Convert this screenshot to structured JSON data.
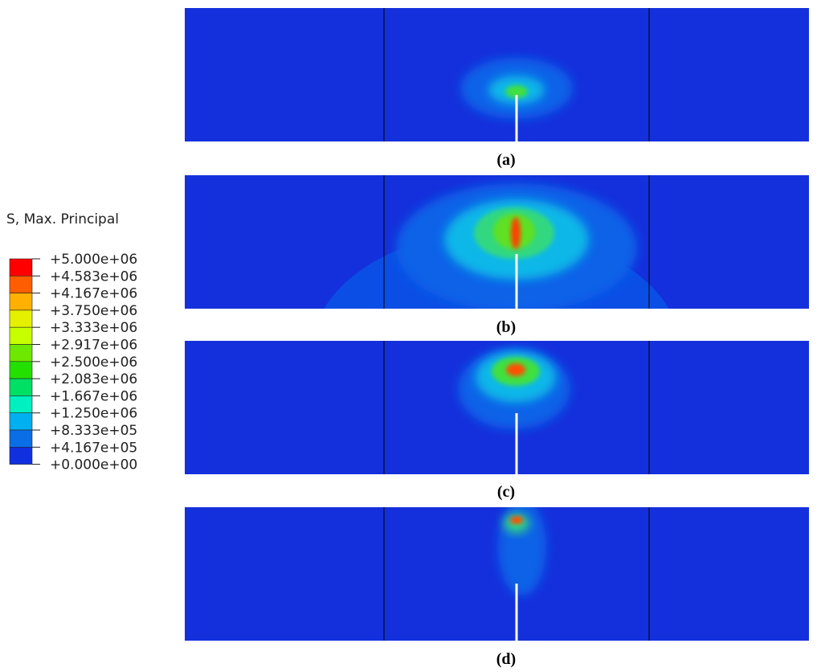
{
  "legend": {
    "title": "S, Max. Principal",
    "entries": [
      {
        "label": "+5.000e+06",
        "color": "#ff0000"
      },
      {
        "label": "+4.583e+06",
        "color": "#ff5e00"
      },
      {
        "label": "+4.167e+06",
        "color": "#ffb000"
      },
      {
        "label": "+3.750e+06",
        "color": "#e4f000"
      },
      {
        "label": "+3.333e+06",
        "color": "#c8ff00"
      },
      {
        "label": "+2.917e+06",
        "color": "#6ee800"
      },
      {
        "label": "+2.500e+06",
        "color": "#24e000"
      },
      {
        "label": "+2.083e+06",
        "color": "#00e064"
      },
      {
        "label": "+1.667e+06",
        "color": "#00f0c0"
      },
      {
        "label": "+1.250e+06",
        "color": "#00b0f0"
      },
      {
        "label": "+8.333e+05",
        "color": "#0a6ee6"
      },
      {
        "label": "+4.167e+05",
        "color": "#1030e0"
      },
      {
        "label": "+0.000e+00"
      }
    ]
  },
  "panels": [
    {
      "label": "(a)"
    },
    {
      "label": "(b)"
    },
    {
      "label": "(c)"
    },
    {
      "label": "(d)"
    }
  ]
}
